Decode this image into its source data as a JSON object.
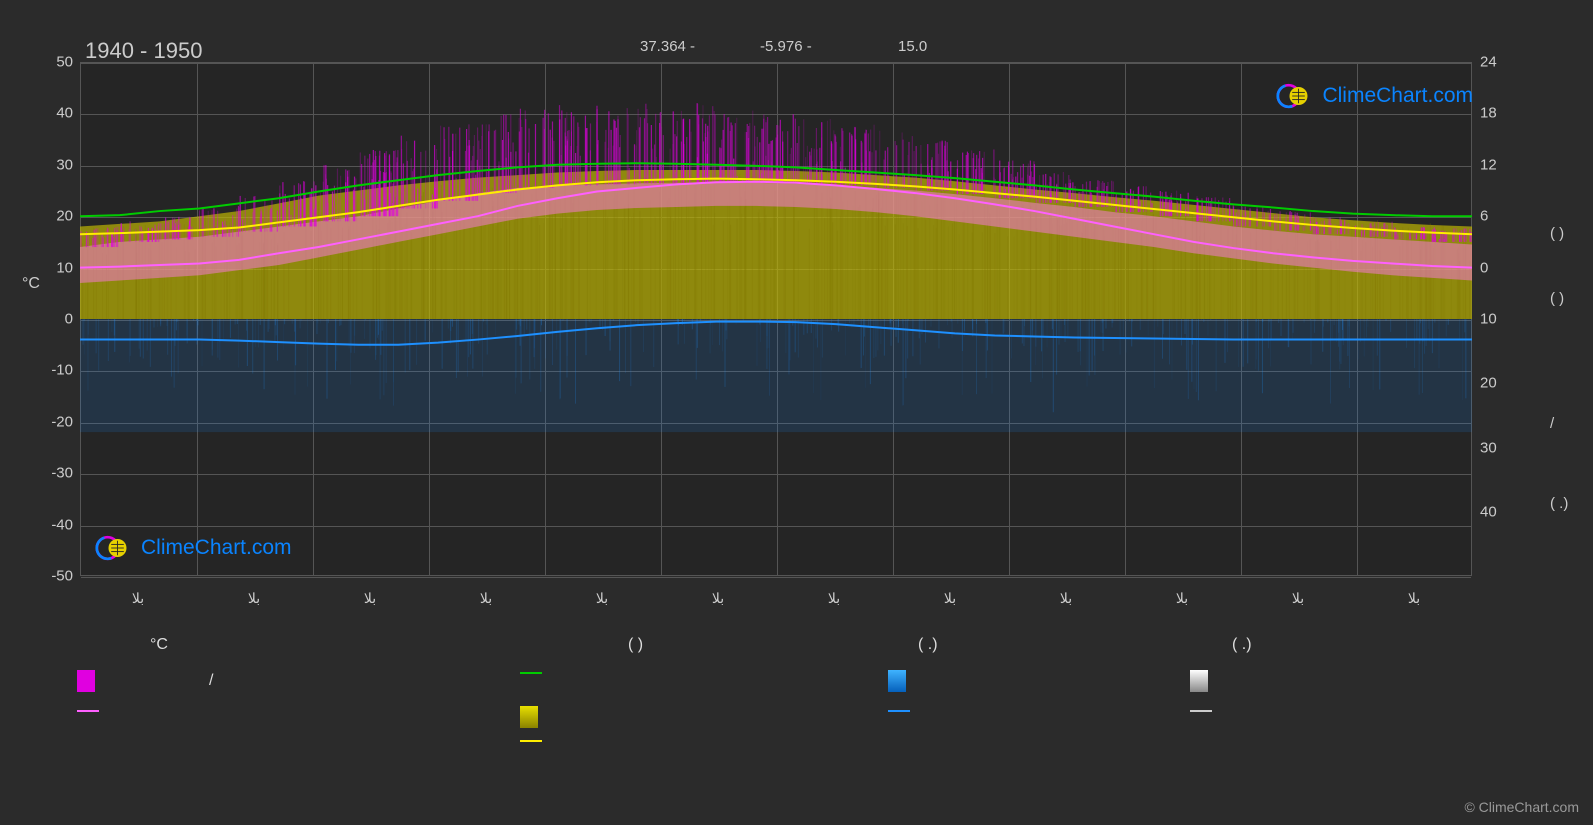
{
  "header": {
    "year_range": "1940 - 1950",
    "lat": "37.364 -",
    "lon": "-5.976 -",
    "alt": "15.0",
    "logo_text": "ClimeChart.com",
    "copyright": "© ClimeChart.com"
  },
  "chart": {
    "type": "climate-chart",
    "left_axis": {
      "label": "°C",
      "min": -50,
      "max": 50,
      "tick_step": 10
    },
    "right_axis": {
      "ticks": [
        24,
        18,
        12,
        6,
        0,
        10,
        20,
        30,
        40
      ]
    },
    "right_labels": {
      "units": [
        "(    )",
        "(    )"
      ],
      "div": "/",
      "units2": "(  .)"
    },
    "background_color": "#252525",
    "grid_color": "#555555",
    "vgrid_count": 12,
    "logo": {
      "ring_colors": [
        "#e000e0",
        "#0a84ff"
      ],
      "sun_color": "#e6d000",
      "text_color": "#0a84ff"
    },
    "series": {
      "green": {
        "color": "#00cc00",
        "width": 2,
        "values": [
          20,
          20.2,
          21,
          21.5,
          22.5,
          23.5,
          24.8,
          26,
          27,
          28,
          28.8,
          29.5,
          30,
          30.2,
          30.3,
          30.2,
          30,
          29.8,
          29.5,
          29,
          28.5,
          28,
          27.4,
          26.7,
          26,
          25.2,
          24.5,
          23.8,
          23,
          22.3,
          21.7,
          21,
          20.5,
          20.2,
          20,
          20
        ]
      },
      "yellow": {
        "color": "#ffee00",
        "width": 2,
        "values": [
          16.5,
          16.7,
          17,
          17.3,
          17.8,
          18.8,
          19.8,
          20.8,
          22,
          23.2,
          24.2,
          25.2,
          26,
          26.6,
          27,
          27.2,
          27.3,
          27.2,
          27,
          26.7,
          26.3,
          25.8,
          25.2,
          24.5,
          23.8,
          23,
          22.2,
          21.4,
          20.6,
          19.8,
          19,
          18.3,
          17.7,
          17.2,
          16.8,
          16.5
        ]
      },
      "pink": {
        "color": "#ff60ff",
        "width": 2,
        "values": [
          10,
          10.2,
          10.5,
          10.8,
          11.5,
          12.8,
          14,
          15.5,
          17,
          18.5,
          20,
          22,
          23.5,
          24.8,
          25.5,
          26.2,
          26.6,
          26.7,
          26.5,
          26,
          25.3,
          24.5,
          23.5,
          22.3,
          21,
          19.5,
          18,
          16.5,
          15,
          13.8,
          12.8,
          12,
          11.3,
          10.8,
          10.3,
          10
        ]
      },
      "blue": {
        "color": "#1e90ff",
        "width": 2,
        "values": [
          -4,
          -4,
          -4,
          -4,
          -4.2,
          -4.5,
          -4.8,
          -5,
          -5,
          -4.6,
          -4,
          -3.3,
          -2.5,
          -1.8,
          -1.2,
          -0.8,
          -0.5,
          -0.5,
          -0.6,
          -1,
          -1.6,
          -2.2,
          -2.8,
          -3.2,
          -3.4,
          -3.6,
          -3.7,
          -3.8,
          -3.9,
          -4,
          -4,
          -4,
          -4,
          -4,
          -4,
          -4
        ]
      }
    },
    "fill_bands": {
      "magenta_top": {
        "color": "rgba(224,0,224,0.55)",
        "max_values": [
          18,
          19,
          20,
          22,
          24,
          27,
          30,
          33,
          36,
          38,
          40,
          41,
          42,
          42,
          42,
          42,
          41,
          40,
          39,
          38,
          37,
          35,
          33,
          31,
          29,
          27,
          26,
          25,
          24,
          22,
          21,
          20,
          19,
          18,
          18,
          18
        ],
        "min_values": [
          14,
          15,
          15.5,
          16,
          17,
          18,
          19,
          20,
          21.5,
          23,
          24.5,
          25.5,
          26,
          26.2,
          26.4,
          26.5,
          26.5,
          26.5,
          26.3,
          26,
          25.5,
          25,
          24.3,
          23.5,
          22.6,
          21.8,
          20.8,
          20,
          19,
          18,
          17.2,
          16.5,
          16,
          15.5,
          15,
          14.5
        ]
      },
      "pink_mid": {
        "color": "rgba(255,120,230,0.5)",
        "max_values": [
          14,
          15,
          15.5,
          16,
          17,
          18,
          19,
          20,
          21.5,
          23,
          24.5,
          25.5,
          26,
          26.2,
          26.4,
          26.5,
          26.5,
          26.5,
          26.3,
          26,
          25.5,
          25,
          24.3,
          23.5,
          22.6,
          21.8,
          20.8,
          20,
          19,
          18,
          17.2,
          16.5,
          16,
          15.5,
          15,
          14.5
        ],
        "min_values": [
          7,
          7.5,
          8,
          8.5,
          9.5,
          10.5,
          12,
          13.5,
          15,
          16.5,
          18,
          19.5,
          20.5,
          21.2,
          21.6,
          21.8,
          22,
          22,
          21.8,
          21.4,
          20.8,
          20,
          19,
          18,
          17,
          16,
          15,
          14,
          12.8,
          11.8,
          10.8,
          10,
          9.2,
          8.5,
          8,
          7.5
        ]
      },
      "yellow_low": {
        "color": "rgba(200,190,0,0.65)",
        "max_values": [
          18,
          18.5,
          19,
          20,
          21,
          22.5,
          24,
          25,
          26,
          26.8,
          27.5,
          28,
          28.5,
          28.8,
          29,
          29,
          29,
          29,
          28.8,
          28.5,
          28,
          27.5,
          26.8,
          26,
          25.2,
          24.5,
          23.7,
          23,
          22.2,
          21.4,
          20.6,
          19.8,
          19.2,
          18.7,
          18.3,
          18
        ],
        "min_values": [
          0,
          0,
          0,
          0,
          0,
          0,
          0,
          0,
          0,
          0,
          0,
          0,
          0,
          0,
          0,
          0,
          0,
          0,
          0,
          0,
          0,
          0,
          0,
          0,
          0,
          0,
          0,
          0,
          0,
          0,
          0,
          0,
          0,
          0,
          0,
          0
        ]
      }
    },
    "blue_haze": {
      "color": "rgba(30,144,255,0.15)",
      "depth": -22
    },
    "x_ticks": [
      "بلا",
      "بلا",
      "بلا",
      "بلا",
      "بلا",
      "بلا",
      "بلا",
      "بلا",
      "بلا",
      "بلا",
      "بلا",
      "بلا"
    ]
  },
  "legend": {
    "headers": [
      "°C",
      "(        )",
      "(  .)",
      "(  .)"
    ],
    "row1": [
      {
        "swatch": "box",
        "color": "#e000e0",
        "label": "/"
      },
      {
        "swatch": "line",
        "color": "#00cc00",
        "label": ""
      },
      {
        "swatch": "box-grad",
        "color_top": "#3fb3ff",
        "color_bot": "#0560bb",
        "label": ""
      },
      {
        "swatch": "box-grad",
        "color_top": "#ffffff",
        "color_bot": "#888888",
        "label": ""
      }
    ],
    "row2": [
      {
        "swatch": "line",
        "color": "#ff60ff",
        "label": ""
      },
      {
        "swatch": "box-grad",
        "color_top": "#e8e000",
        "color_bot": "#8a8200",
        "label": ""
      },
      {
        "swatch": "line",
        "color": "#1e90ff",
        "label": ""
      },
      {
        "swatch": "line",
        "color": "#cccccc",
        "label": ""
      }
    ],
    "row3": [
      {
        "swatch": "line",
        "color": "#ffee00",
        "label": ""
      }
    ]
  }
}
